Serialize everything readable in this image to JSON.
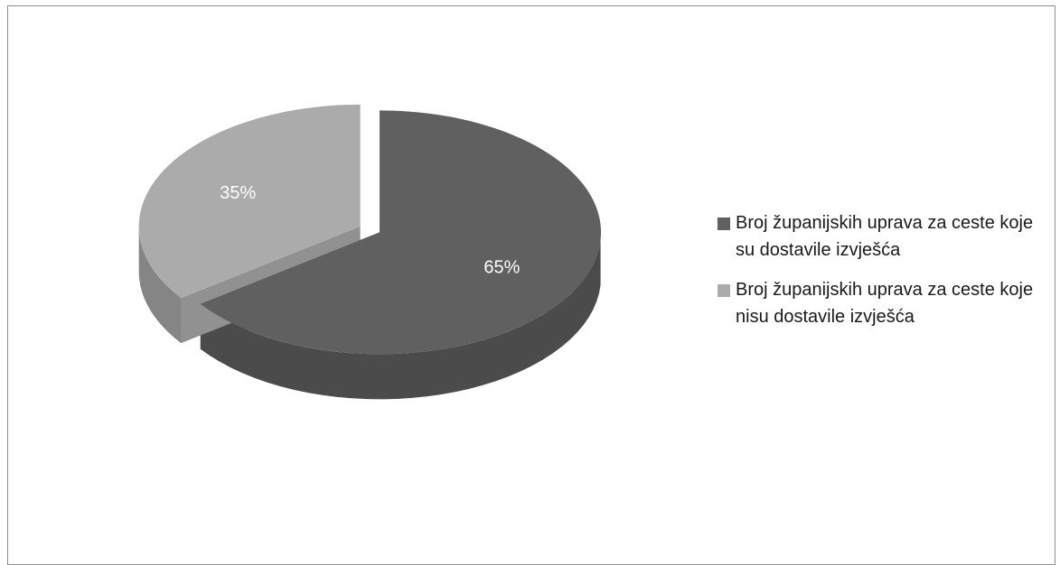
{
  "chart_data": {
    "type": "pie",
    "title": "",
    "slices": [
      {
        "label": "Broj županijskih uprava za ceste koje su dostavile izvješća",
        "value": 65,
        "data_label": "65%",
        "color": "#606060"
      },
      {
        "label": "Broj županijskih uprava za ceste koje nisu dostavile izvješća",
        "value": 35,
        "data_label": "35%",
        "color": "#ababab"
      }
    ],
    "legend_position": "right",
    "style": "3d-exploded"
  }
}
